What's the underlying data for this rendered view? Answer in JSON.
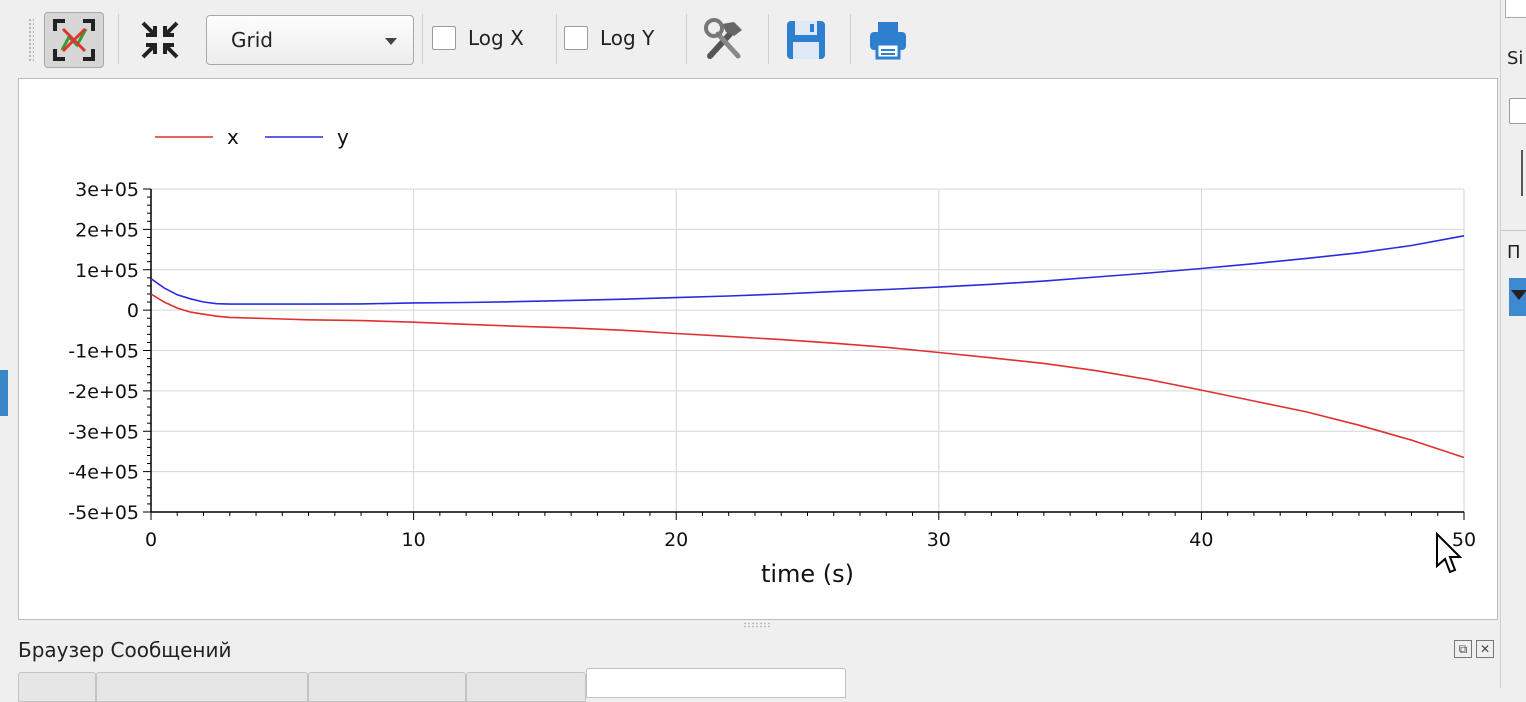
{
  "toolbar": {
    "grid_select_value": "Grid",
    "logx_label": "Log X",
    "logy_label": "Log Y",
    "logx_checked": false,
    "logy_checked": false
  },
  "chart_data": {
    "type": "line",
    "title": "",
    "xlabel": "time (s)",
    "ylabel": "",
    "xlim": [
      0,
      50
    ],
    "ylim": [
      -500000,
      300000
    ],
    "xticks": [
      0,
      10,
      20,
      30,
      40,
      50
    ],
    "xtick_labels": [
      "0",
      "10",
      "20",
      "30",
      "40",
      "50"
    ],
    "yticks": [
      300000,
      200000,
      100000,
      0,
      -100000,
      -200000,
      -300000,
      -400000,
      -500000
    ],
    "ytick_labels": [
      "3e+05",
      "2e+05",
      "1e+05",
      "0",
      "-1e+05",
      "-2e+05",
      "-3e+05",
      "-4e+05",
      "-5e+05"
    ],
    "grid": true,
    "legend_position": "top-left",
    "series": [
      {
        "name": "x",
        "color": "#e03030",
        "points": [
          [
            0,
            40000
          ],
          [
            0.5,
            20000
          ],
          [
            1,
            5000
          ],
          [
            1.5,
            -5000
          ],
          [
            2,
            -10000
          ],
          [
            2.5,
            -15000
          ],
          [
            3,
            -18000
          ],
          [
            4,
            -20000
          ],
          [
            5,
            -22000
          ],
          [
            6,
            -24000
          ],
          [
            8,
            -26000
          ],
          [
            10,
            -30000
          ],
          [
            12,
            -35000
          ],
          [
            14,
            -40000
          ],
          [
            16,
            -44000
          ],
          [
            18,
            -50000
          ],
          [
            20,
            -58000
          ],
          [
            22,
            -65000
          ],
          [
            24,
            -73000
          ],
          [
            26,
            -82000
          ],
          [
            28,
            -92000
          ],
          [
            30,
            -105000
          ],
          [
            32,
            -118000
          ],
          [
            34,
            -132000
          ],
          [
            36,
            -150000
          ],
          [
            38,
            -172000
          ],
          [
            40,
            -198000
          ],
          [
            42,
            -225000
          ],
          [
            44,
            -252000
          ],
          [
            46,
            -285000
          ],
          [
            48,
            -322000
          ],
          [
            50,
            -365000
          ]
        ]
      },
      {
        "name": "y",
        "color": "#2a2ae0",
        "points": [
          [
            0,
            78000
          ],
          [
            0.5,
            55000
          ],
          [
            1,
            38000
          ],
          [
            1.5,
            28000
          ],
          [
            2,
            20000
          ],
          [
            2.5,
            16000
          ],
          [
            3,
            15000
          ],
          [
            4,
            15000
          ],
          [
            6,
            15000
          ],
          [
            8,
            15500
          ],
          [
            10,
            18000
          ],
          [
            12,
            19000
          ],
          [
            14,
            21000
          ],
          [
            16,
            24000
          ],
          [
            18,
            27000
          ],
          [
            20,
            31000
          ],
          [
            22,
            35000
          ],
          [
            24,
            40000
          ],
          [
            26,
            46000
          ],
          [
            28,
            51000
          ],
          [
            30,
            57000
          ],
          [
            32,
            64000
          ],
          [
            34,
            72000
          ],
          [
            36,
            82000
          ],
          [
            38,
            92000
          ],
          [
            40,
            103000
          ],
          [
            42,
            115000
          ],
          [
            44,
            128000
          ],
          [
            46,
            142000
          ],
          [
            48,
            160000
          ],
          [
            50,
            184000
          ]
        ]
      }
    ]
  },
  "messages": {
    "title": "Браузер Сообщений"
  },
  "right_panel": {
    "label_si": "Si",
    "label_p": "П"
  }
}
